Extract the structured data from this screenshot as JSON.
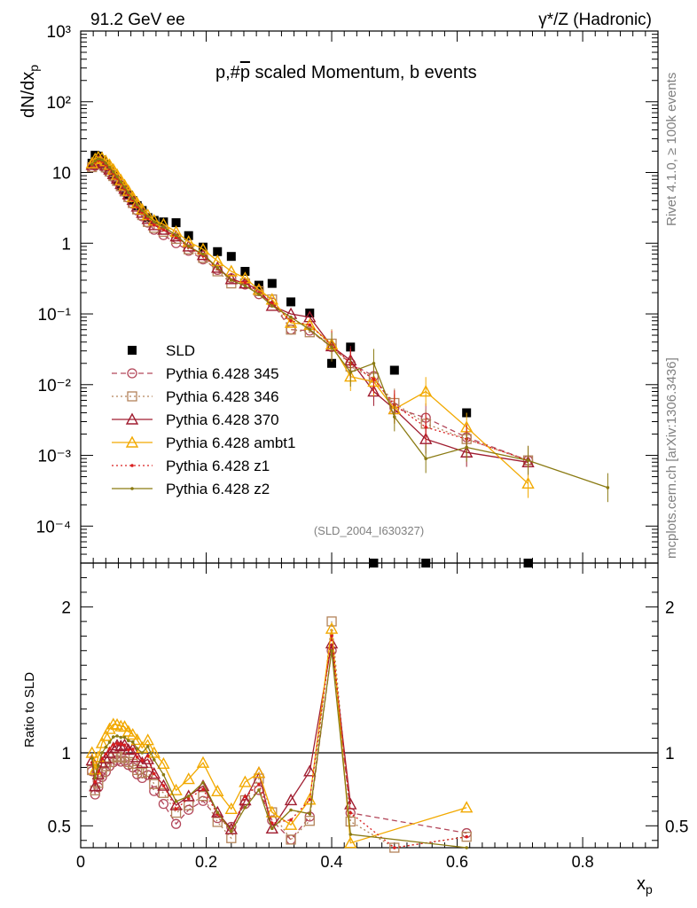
{
  "header": {
    "left": "91.2 GeV ee",
    "right": "γ*/Z (Hadronic)"
  },
  "side": {
    "rivet": "Rivet 4.1.0, ≥ 100k events",
    "mcplots": "mcplots.cern.ch [arXiv:1306.3436]"
  },
  "colors": {
    "SLD": "#000000",
    "p345": "#b3475a",
    "p346": "#b3835a",
    "p370": "#a01d30",
    "ambt1": "#f2a900",
    "z1": "#d91e1e",
    "z2": "#8a7a12"
  },
  "chart_data": {
    "type": "scatter",
    "title": "p,#p̄ scaled Momentum, b events",
    "title_main": "p,#",
    "title_pbar": "p",
    "title_rest": " scaled Momentum, b events",
    "analysis_label": "(SLD_2004_I630327)",
    "xlabel": "x",
    "xlabel_sub": "p",
    "ylabel": "dN/dx",
    "ylabel_sub": "p",
    "ratio_ylabel": "Ratio to SLD",
    "xlim": [
      0,
      0.92
    ],
    "ylim": [
      3e-05,
      1000
    ],
    "ratio_ylim": [
      0.35,
      2.3
    ],
    "x_ticks": [
      "0",
      "0.2",
      "0.4",
      "0.6",
      "0.8"
    ],
    "y_ticks": [
      "10³",
      "10²",
      "10",
      "1",
      "10⁻¹",
      "10⁻²",
      "10⁻³",
      "10⁻⁴"
    ],
    "ratio_ticks": [
      "0.5",
      "1",
      "2"
    ],
    "legend_location": "middle-left",
    "series": [
      {
        "name": "SLD",
        "key": "SLD",
        "marker": "square",
        "line": "none",
        "x": [
          0.018,
          0.023,
          0.028,
          0.034,
          0.04,
          0.046,
          0.052,
          0.058,
          0.064,
          0.07,
          0.076,
          0.083,
          0.09,
          0.098,
          0.107,
          0.117,
          0.132,
          0.152,
          0.172,
          0.195,
          0.218,
          0.24,
          0.262,
          0.284,
          0.305,
          0.335,
          0.365,
          0.4,
          0.43,
          0.467,
          0.5,
          0.55,
          0.615,
          0.713
        ],
        "y": [
          13.5,
          17.5,
          17.0,
          15.0,
          13.0,
          11.0,
          9.2,
          7.8,
          6.6,
          5.6,
          4.8,
          4.0,
          3.4,
          2.9,
          2.3,
          2.1,
          2.0,
          1.95,
          1.28,
          0.88,
          0.76,
          0.65,
          0.4,
          0.255,
          0.27,
          0.148,
          0.103,
          0.02,
          0.034,
          3e-05,
          0.016,
          3e-05,
          0.004,
          3e-05
        ]
      },
      {
        "name": "Pythia 6.428 345",
        "key": "p345",
        "marker": "circle",
        "line": "dashed",
        "x": [
          0.018,
          0.023,
          0.028,
          0.034,
          0.04,
          0.046,
          0.052,
          0.058,
          0.064,
          0.07,
          0.076,
          0.083,
          0.09,
          0.098,
          0.107,
          0.117,
          0.132,
          0.152,
          0.172,
          0.195,
          0.218,
          0.24,
          0.262,
          0.284,
          0.305,
          0.335,
          0.365,
          0.4,
          0.43,
          0.467,
          0.5,
          0.55,
          0.615,
          0.713
        ],
        "y": [
          11.8,
          12.5,
          13.0,
          12.5,
          11.3,
          10.0,
          8.6,
          7.4,
          6.2,
          5.3,
          4.4,
          3.6,
          2.9,
          2.4,
          1.95,
          1.55,
          1.3,
          1.0,
          0.78,
          0.59,
          0.42,
          0.32,
          0.26,
          0.19,
          0.145,
          0.06,
          0.058,
          0.034,
          0.02,
          0.0132,
          0.0047,
          0.0034,
          0.0018,
          0.00085
        ]
      },
      {
        "name": "Pythia 6.428 346",
        "key": "p346",
        "marker": "square-open",
        "line": "dotted",
        "x": [
          0.018,
          0.023,
          0.028,
          0.034,
          0.04,
          0.046,
          0.052,
          0.058,
          0.064,
          0.07,
          0.076,
          0.083,
          0.09,
          0.098,
          0.107,
          0.117,
          0.132,
          0.152,
          0.172,
          0.195,
          0.218,
          0.24,
          0.262,
          0.284,
          0.305,
          0.335,
          0.365,
          0.4,
          0.43,
          0.467,
          0.5,
          0.55,
          0.615,
          0.713
        ],
        "y": [
          11.9,
          13.0,
          13.5,
          13.0,
          11.8,
          10.3,
          8.9,
          7.6,
          6.4,
          5.4,
          4.5,
          3.7,
          3.0,
          2.5,
          2.0,
          1.65,
          1.45,
          1.15,
          0.82,
          0.62,
          0.4,
          0.27,
          0.27,
          0.21,
          0.16,
          0.06,
          0.055,
          0.038,
          0.018,
          0.0125,
          0.0055,
          0.0028,
          0.0017,
          0.00085
        ]
      },
      {
        "name": "Pythia 6.428 370",
        "key": "p370",
        "marker": "triangle-open",
        "line": "solid",
        "x": [
          0.018,
          0.023,
          0.028,
          0.034,
          0.04,
          0.046,
          0.052,
          0.058,
          0.064,
          0.07,
          0.076,
          0.083,
          0.09,
          0.098,
          0.107,
          0.117,
          0.132,
          0.152,
          0.172,
          0.195,
          0.218,
          0.24,
          0.262,
          0.284,
          0.305,
          0.335,
          0.365,
          0.4,
          0.43,
          0.467,
          0.5,
          0.55,
          0.615,
          0.713
        ],
        "y": [
          12.8,
          13.5,
          14.5,
          14.0,
          12.5,
          11.0,
          9.5,
          8.2,
          6.9,
          5.9,
          4.9,
          4.1,
          3.3,
          2.7,
          2.2,
          1.8,
          1.55,
          1.25,
          0.9,
          0.68,
          0.45,
          0.31,
          0.27,
          0.22,
          0.13,
          0.1,
          0.09,
          0.035,
          0.022,
          0.008,
          0.0045,
          0.0017,
          0.0011,
          0.0008
        ]
      },
      {
        "name": "Pythia 6.428 ambt1",
        "key": "ambt1",
        "marker": "triangle-open",
        "line": "solid",
        "x": [
          0.018,
          0.023,
          0.028,
          0.034,
          0.04,
          0.046,
          0.052,
          0.058,
          0.064,
          0.07,
          0.076,
          0.083,
          0.09,
          0.098,
          0.107,
          0.117,
          0.132,
          0.152,
          0.172,
          0.195,
          0.218,
          0.24,
          0.262,
          0.284,
          0.305,
          0.335,
          0.365,
          0.4,
          0.43,
          0.467,
          0.5,
          0.55,
          0.615,
          0.713
        ],
        "y": [
          13.5,
          15.5,
          16.5,
          16.0,
          14.5,
          12.8,
          11.0,
          9.3,
          7.8,
          6.6,
          5.5,
          4.5,
          3.7,
          3.0,
          2.5,
          2.1,
          1.85,
          1.45,
          1.05,
          0.82,
          0.56,
          0.4,
          0.32,
          0.22,
          0.16,
          0.075,
          0.07,
          0.037,
          0.013,
          0.011,
          0.0045,
          0.008,
          0.0025,
          0.0004
        ]
      },
      {
        "name": "Pythia 6.428 z1",
        "key": "z1",
        "marker": "dot",
        "line": "dotted",
        "x": [
          0.018,
          0.023,
          0.028,
          0.034,
          0.04,
          0.046,
          0.052,
          0.058,
          0.064,
          0.07,
          0.076,
          0.083,
          0.09,
          0.098,
          0.107,
          0.117,
          0.132,
          0.152,
          0.172,
          0.195,
          0.218,
          0.24,
          0.262,
          0.284,
          0.305,
          0.335,
          0.365,
          0.4,
          0.43,
          0.467,
          0.5,
          0.55,
          0.615,
          0.713
        ],
        "y": [
          12.6,
          14.0,
          14.8,
          14.4,
          12.9,
          11.3,
          9.7,
          8.3,
          7.0,
          5.9,
          4.9,
          4.1,
          3.3,
          2.75,
          2.25,
          1.8,
          1.55,
          1.2,
          0.88,
          0.66,
          0.44,
          0.3,
          0.28,
          0.2,
          0.14,
          0.08,
          0.07,
          0.036,
          0.02,
          0.012,
          0.0052,
          0.0025,
          0.0017,
          0.00085
        ]
      },
      {
        "name": "Pythia 6.428 z2",
        "key": "z2",
        "marker": "dot",
        "line": "solid",
        "x": [
          0.018,
          0.023,
          0.028,
          0.034,
          0.04,
          0.046,
          0.052,
          0.058,
          0.064,
          0.07,
          0.076,
          0.083,
          0.09,
          0.098,
          0.107,
          0.117,
          0.132,
          0.152,
          0.172,
          0.195,
          0.218,
          0.24,
          0.262,
          0.284,
          0.305,
          0.335,
          0.365,
          0.4,
          0.43,
          0.467,
          0.5,
          0.55,
          0.615,
          0.713,
          0.84
        ],
        "y": [
          13.0,
          14.5,
          15.5,
          15.0,
          13.5,
          11.8,
          10.2,
          8.7,
          7.3,
          6.2,
          5.2,
          4.3,
          3.5,
          2.9,
          2.4,
          2.0,
          1.7,
          1.3,
          0.9,
          0.7,
          0.45,
          0.3,
          0.25,
          0.19,
          0.13,
          0.09,
          0.06,
          0.034,
          0.015,
          0.02,
          0.0035,
          0.0009,
          0.0013,
          0.00085,
          0.00035
        ]
      }
    ]
  }
}
